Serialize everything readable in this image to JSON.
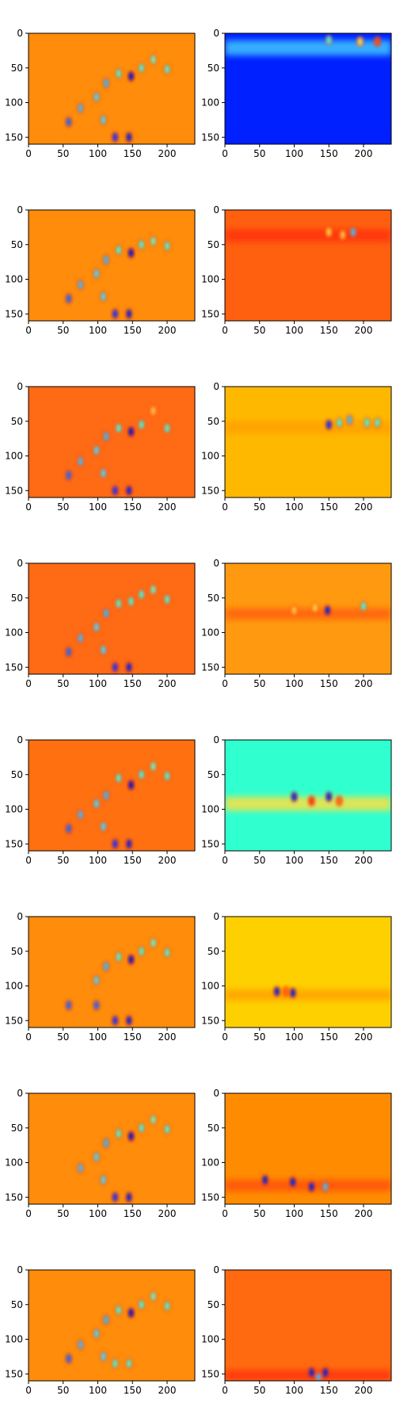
{
  "chart_data": {
    "type": "heatmap",
    "layout": {
      "rows": 8,
      "cols": 2
    },
    "colormap": "jet",
    "x_ticks": [
      0,
      50,
      100,
      150,
      200
    ],
    "y_ticks": [
      0,
      50,
      100,
      150
    ],
    "x_tick_labels": [
      "0",
      "50",
      "100",
      "150",
      "200"
    ],
    "y_tick_labels": [
      "0",
      "50",
      "100",
      "150"
    ],
    "xlim": [
      0,
      240
    ],
    "ylim": [
      160,
      0
    ],
    "grid": false,
    "panels": [
      {
        "row": 0,
        "col": 0,
        "background": "#ff8c0a",
        "band": null,
        "blobs": [
          [
            58,
            128,
            "#1a6aff"
          ],
          [
            75,
            108,
            "#40c0ff"
          ],
          [
            98,
            92,
            "#40e0ff"
          ],
          [
            112,
            72,
            "#30c0ff"
          ],
          [
            130,
            58,
            "#40ffe0"
          ],
          [
            148,
            62,
            "#0010d0"
          ],
          [
            163,
            50,
            "#40ffe0"
          ],
          [
            180,
            38,
            "#60ffd0"
          ],
          [
            200,
            52,
            "#40ffe0"
          ],
          [
            125,
            150,
            "#1030ff"
          ],
          [
            145,
            150,
            "#0020e0"
          ],
          [
            108,
            125,
            "#40e0ff"
          ]
        ]
      },
      {
        "row": 0,
        "col": 1,
        "background": "#0020ff",
        "band": {
          "y": 10,
          "height": 22,
          "color": "#40c8ff"
        },
        "blobs": [
          [
            220,
            12,
            "#ff5000"
          ],
          [
            195,
            12,
            "#ffe040"
          ],
          [
            150,
            10,
            "#40ffe0"
          ]
        ]
      },
      {
        "row": 1,
        "col": 0,
        "background": "#ff8c0a",
        "band": null,
        "blobs": [
          [
            58,
            128,
            "#1a6aff"
          ],
          [
            75,
            108,
            "#40c0ff"
          ],
          [
            98,
            92,
            "#40e0ff"
          ],
          [
            112,
            72,
            "#30c0ff"
          ],
          [
            130,
            58,
            "#40ffe0"
          ],
          [
            148,
            62,
            "#0010d0"
          ],
          [
            163,
            50,
            "#40ffe0"
          ],
          [
            180,
            45,
            "#60ffd0"
          ],
          [
            200,
            52,
            "#40ffe0"
          ],
          [
            125,
            150,
            "#1030ff"
          ],
          [
            145,
            150,
            "#0020e0"
          ],
          [
            108,
            125,
            "#40e0ff"
          ]
        ]
      },
      {
        "row": 1,
        "col": 1,
        "background": "#ff6010",
        "band": {
          "y": 28,
          "height": 18,
          "color": "#ff3010"
        },
        "blobs": [
          [
            150,
            32,
            "#ffe040"
          ],
          [
            185,
            32,
            "#40c0ff"
          ],
          [
            170,
            36,
            "#ffd040"
          ]
        ]
      },
      {
        "row": 2,
        "col": 0,
        "background": "#ff6a14",
        "band": null,
        "blobs": [
          [
            58,
            128,
            "#1a6aff"
          ],
          [
            75,
            108,
            "#40c0ff"
          ],
          [
            98,
            92,
            "#40e0ff"
          ],
          [
            112,
            72,
            "#30c0ff"
          ],
          [
            130,
            60,
            "#40ffe0"
          ],
          [
            148,
            65,
            "#0010d0"
          ],
          [
            163,
            55,
            "#40ffe0"
          ],
          [
            180,
            35,
            "#ffd040"
          ],
          [
            200,
            60,
            "#40ffe0"
          ],
          [
            125,
            150,
            "#1030ff"
          ],
          [
            145,
            150,
            "#0020e0"
          ],
          [
            108,
            125,
            "#40e0ff"
          ]
        ]
      },
      {
        "row": 2,
        "col": 1,
        "background": "#ffb800",
        "band": {
          "y": 50,
          "height": 18,
          "color": "#ffa000"
        },
        "blobs": [
          [
            150,
            55,
            "#0030ff"
          ],
          [
            180,
            48,
            "#40c0ff"
          ],
          [
            205,
            52,
            "#40ffe0"
          ],
          [
            220,
            52,
            "#40ffe0"
          ],
          [
            165,
            52,
            "#40ffe0"
          ]
        ]
      },
      {
        "row": 3,
        "col": 0,
        "background": "#ff6a14",
        "band": null,
        "blobs": [
          [
            58,
            128,
            "#1a6aff"
          ],
          [
            75,
            108,
            "#40c0ff"
          ],
          [
            98,
            92,
            "#40e0ff"
          ],
          [
            112,
            72,
            "#30c0ff"
          ],
          [
            130,
            58,
            "#40ffe0"
          ],
          [
            148,
            55,
            "#40ffe0"
          ],
          [
            163,
            45,
            "#40ffe0"
          ],
          [
            180,
            38,
            "#60ffd0"
          ],
          [
            200,
            52,
            "#40ffe0"
          ],
          [
            125,
            150,
            "#1030ff"
          ],
          [
            145,
            150,
            "#0020e0"
          ],
          [
            108,
            125,
            "#40e0ff"
          ]
        ]
      },
      {
        "row": 3,
        "col": 1,
        "background": "#ff9a10",
        "band": {
          "y": 65,
          "height": 16,
          "color": "#ff6010"
        },
        "blobs": [
          [
            100,
            68,
            "#ffd040"
          ],
          [
            148,
            68,
            "#0020e0"
          ],
          [
            200,
            62,
            "#40ffe0"
          ],
          [
            130,
            64,
            "#ffe040"
          ]
        ]
      },
      {
        "row": 4,
        "col": 0,
        "background": "#ff7010",
        "band": null,
        "blobs": [
          [
            58,
            128,
            "#1a6aff"
          ],
          [
            75,
            108,
            "#40c0ff"
          ],
          [
            98,
            92,
            "#40e0ff"
          ],
          [
            112,
            80,
            "#30c0ff"
          ],
          [
            130,
            55,
            "#40ffe0"
          ],
          [
            148,
            65,
            "#0010d0"
          ],
          [
            163,
            50,
            "#40ffe0"
          ],
          [
            180,
            38,
            "#60ffd0"
          ],
          [
            200,
            52,
            "#40ffe0"
          ],
          [
            125,
            150,
            "#1030ff"
          ],
          [
            145,
            150,
            "#0020e0"
          ],
          [
            108,
            125,
            "#40e0ff"
          ]
        ]
      },
      {
        "row": 4,
        "col": 1,
        "background": "#30ffd0",
        "band": {
          "y": 82,
          "height": 20,
          "color": "#ffe040"
        },
        "blobs": [
          [
            100,
            82,
            "#0020e0"
          ],
          [
            150,
            82,
            "#0020e0"
          ],
          [
            125,
            88,
            "#ff3010"
          ],
          [
            165,
            88,
            "#ff6010"
          ]
        ]
      },
      {
        "row": 5,
        "col": 0,
        "background": "#ff8c0a",
        "band": null,
        "blobs": [
          [
            58,
            128,
            "#1a6aff"
          ],
          [
            98,
            128,
            "#1a6aff"
          ],
          [
            98,
            92,
            "#40e0ff"
          ],
          [
            112,
            72,
            "#30c0ff"
          ],
          [
            130,
            58,
            "#40ffe0"
          ],
          [
            148,
            62,
            "#0010d0"
          ],
          [
            163,
            50,
            "#40ffe0"
          ],
          [
            180,
            38,
            "#60ffd0"
          ],
          [
            200,
            52,
            "#40ffe0"
          ],
          [
            125,
            150,
            "#1030ff"
          ],
          [
            145,
            150,
            "#0020e0"
          ]
        ]
      },
      {
        "row": 5,
        "col": 1,
        "background": "#ffd000",
        "band": {
          "y": 105,
          "height": 16,
          "color": "#ffa000"
        },
        "blobs": [
          [
            75,
            108,
            "#0020e0"
          ],
          [
            98,
            110,
            "#0020e0"
          ],
          [
            88,
            108,
            "#ff6010"
          ]
        ]
      },
      {
        "row": 6,
        "col": 0,
        "background": "#ff8c0a",
        "band": null,
        "blobs": [
          [
            75,
            108,
            "#40c0ff"
          ],
          [
            98,
            92,
            "#40e0ff"
          ],
          [
            112,
            72,
            "#30c0ff"
          ],
          [
            130,
            58,
            "#40ffe0"
          ],
          [
            148,
            62,
            "#0010d0"
          ],
          [
            163,
            50,
            "#40ffe0"
          ],
          [
            180,
            38,
            "#60ffd0"
          ],
          [
            200,
            52,
            "#40ffe0"
          ],
          [
            125,
            150,
            "#1030ff"
          ],
          [
            145,
            150,
            "#0020e0"
          ],
          [
            108,
            125,
            "#40e0ff"
          ]
        ]
      },
      {
        "row": 6,
        "col": 1,
        "background": "#ff8c00",
        "band": {
          "y": 125,
          "height": 16,
          "color": "#ff5010"
        },
        "blobs": [
          [
            58,
            125,
            "#0020e0"
          ],
          [
            98,
            128,
            "#0020e0"
          ],
          [
            125,
            135,
            "#0020e0"
          ],
          [
            145,
            135,
            "#40c0ff"
          ]
        ]
      },
      {
        "row": 7,
        "col": 0,
        "background": "#ff8c0a",
        "band": null,
        "blobs": [
          [
            58,
            128,
            "#1a6aff"
          ],
          [
            75,
            108,
            "#40c0ff"
          ],
          [
            98,
            92,
            "#40e0ff"
          ],
          [
            112,
            72,
            "#30c0ff"
          ],
          [
            130,
            58,
            "#40ffe0"
          ],
          [
            148,
            62,
            "#0010d0"
          ],
          [
            163,
            50,
            "#40ffe0"
          ],
          [
            180,
            38,
            "#60ffd0"
          ],
          [
            200,
            52,
            "#40ffe0"
          ],
          [
            125,
            135,
            "#40ffe0"
          ],
          [
            145,
            135,
            "#40ffe0"
          ],
          [
            108,
            125,
            "#40e0ff"
          ]
        ]
      },
      {
        "row": 7,
        "col": 1,
        "background": "#ff6a10",
        "band": {
          "y": 145,
          "height": 14,
          "color": "#ff3010"
        },
        "blobs": [
          [
            125,
            148,
            "#0020e0"
          ],
          [
            145,
            148,
            "#0020e0"
          ],
          [
            135,
            155,
            "#40c0ff"
          ]
        ]
      }
    ]
  }
}
